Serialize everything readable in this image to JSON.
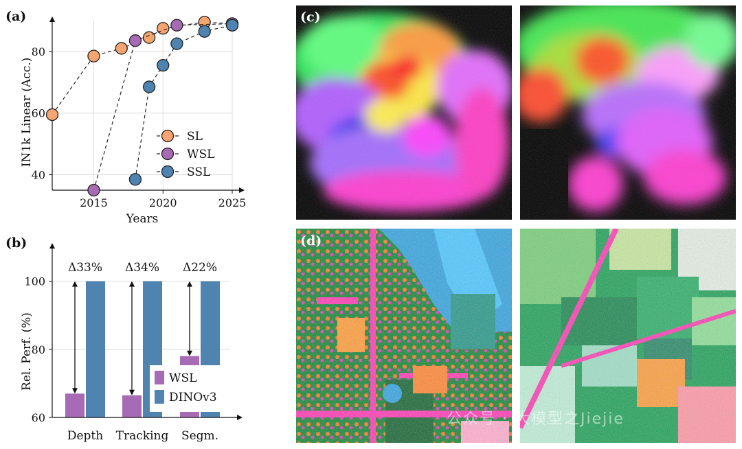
{
  "chart_data": [
    {
      "panel": "(a)",
      "type": "line",
      "ylabel": "IN1k Linear (Acc.)",
      "xlabel": "Years",
      "xlim": [
        2012,
        2025
      ],
      "ylim": [
        35,
        90
      ],
      "xticks": [
        "2015",
        "2020",
        "2025"
      ],
      "yticks": [
        "40",
        "60",
        "80"
      ],
      "legend": "center-right",
      "grid": true,
      "series": [
        {
          "name": "SL",
          "color": "#f5a571",
          "points": [
            [
              2012,
              59.5
            ],
            [
              2015,
              78.5
            ],
            [
              2017,
              81
            ],
            [
              2019,
              84.5
            ],
            [
              2020,
              87.5
            ],
            [
              2023,
              89.5
            ],
            [
              2025,
              89
            ]
          ]
        },
        {
          "name": "WSL",
          "color": "#a76bb5",
          "points": [
            [
              2015,
              35
            ],
            [
              2018,
              83.5
            ],
            [
              2021,
              88.5
            ],
            [
              2025,
              89
            ]
          ]
        },
        {
          "name": "SSL",
          "color": "#4f84b0",
          "points": [
            [
              2018,
              38.5
            ],
            [
              2019,
              68.5
            ],
            [
              2020,
              75.5
            ],
            [
              2021,
              82.5
            ],
            [
              2023,
              86.5
            ],
            [
              2025,
              88.5
            ]
          ]
        }
      ]
    },
    {
      "panel": "(b)",
      "type": "bar",
      "ylabel": "Rel. Perf. (%)",
      "ylim": [
        60,
        110
      ],
      "yticks": [
        "60",
        "80",
        "100"
      ],
      "categories": [
        "Depth",
        "Tracking",
        "Segm."
      ],
      "grid": true,
      "legend": "bottom-right",
      "series": [
        {
          "name": "WSL",
          "color": "#a76bb5",
          "values": [
            67,
            66.5,
            78
          ]
        },
        {
          "name": "DINOv3",
          "color": "#4f84b0",
          "values": [
            100,
            100,
            100
          ]
        }
      ],
      "annotations": [
        "Δ33%",
        "Δ34%",
        "Δ22%"
      ]
    }
  ],
  "panels": {
    "c": {
      "label": "(c)"
    },
    "d": {
      "label": "(d)"
    }
  },
  "watermark": "公众号 · 大模型之Jiejie"
}
